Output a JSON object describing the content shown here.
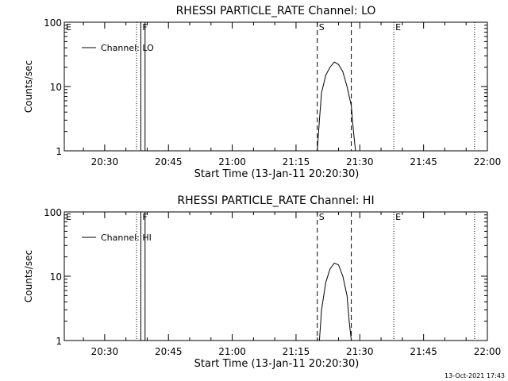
{
  "footer": {
    "timestamp": "13-Oct-2021 17:43"
  },
  "chart_data": [
    {
      "type": "line",
      "title": "RHESSI PARTICLE_RATE Channel: LO",
      "xlabel": "Start Time (13-Jan-11 20:20:30)",
      "ylabel": "Counts/sec",
      "yscale": "log",
      "xlim": [
        "20:20:30",
        "22:00"
      ],
      "ylim": [
        1,
        100
      ],
      "x_ticks": [
        "20:30",
        "20:45",
        "21:00",
        "21:15",
        "21:30",
        "21:45",
        "22:00"
      ],
      "y_ticks": [
        "1",
        "10",
        "100"
      ],
      "legend_position": "top-left",
      "series": [
        {
          "name": "Channel: LO",
          "x": [
            "21:20",
            "21:20:30",
            "21:21",
            "21:22",
            "21:23",
            "21:24",
            "21:25",
            "21:26",
            "21:27",
            "21:28",
            "21:28:30",
            "21:29"
          ],
          "y": [
            1,
            3,
            8,
            15,
            20,
            24,
            22,
            17,
            10,
            5,
            2,
            1
          ]
        }
      ],
      "markers": [
        {
          "label": "E",
          "x": "20:20:30",
          "style": "dotted"
        },
        {
          "label": "",
          "x": "20:37:30",
          "style": "dotted"
        },
        {
          "label": "F",
          "x": "20:38:30",
          "style": "solid"
        },
        {
          "label": "",
          "x": "20:39:30",
          "style": "solid"
        },
        {
          "label": "S",
          "x": "21:20",
          "style": "dashed"
        },
        {
          "label": "",
          "x": "21:28",
          "style": "dashed"
        },
        {
          "label": "E",
          "x": "21:38",
          "style": "dotted"
        },
        {
          "label": "",
          "x": "21:57",
          "style": "dotted"
        }
      ]
    },
    {
      "type": "line",
      "title": "RHESSI PARTICLE_RATE Channel: HI",
      "xlabel": "Start Time (13-Jan-11 20:20:30)",
      "ylabel": "Counts/sec",
      "yscale": "log",
      "xlim": [
        "20:20:30",
        "22:00"
      ],
      "ylim": [
        1,
        100
      ],
      "x_ticks": [
        "20:30",
        "20:45",
        "21:00",
        "21:15",
        "21:30",
        "21:45",
        "22:00"
      ],
      "y_ticks": [
        "1",
        "10",
        "100"
      ],
      "legend_position": "top-left",
      "series": [
        {
          "name": "Channel: HI",
          "x": [
            "21:20:30",
            "21:21",
            "21:22",
            "21:23",
            "21:24",
            "21:25",
            "21:26",
            "21:27",
            "21:27:30",
            "21:28"
          ],
          "y": [
            1,
            3,
            8,
            13,
            16,
            15,
            10,
            5,
            2,
            1
          ]
        }
      ],
      "markers": [
        {
          "label": "E",
          "x": "20:20:30",
          "style": "dotted"
        },
        {
          "label": "",
          "x": "20:37:30",
          "style": "dotted"
        },
        {
          "label": "F",
          "x": "20:38:30",
          "style": "solid"
        },
        {
          "label": "",
          "x": "20:39:30",
          "style": "solid"
        },
        {
          "label": "S",
          "x": "21:20",
          "style": "dashed"
        },
        {
          "label": "",
          "x": "21:28",
          "style": "dashed"
        },
        {
          "label": "E",
          "x": "21:38",
          "style": "dotted"
        },
        {
          "label": "",
          "x": "21:57",
          "style": "dotted"
        }
      ]
    }
  ]
}
